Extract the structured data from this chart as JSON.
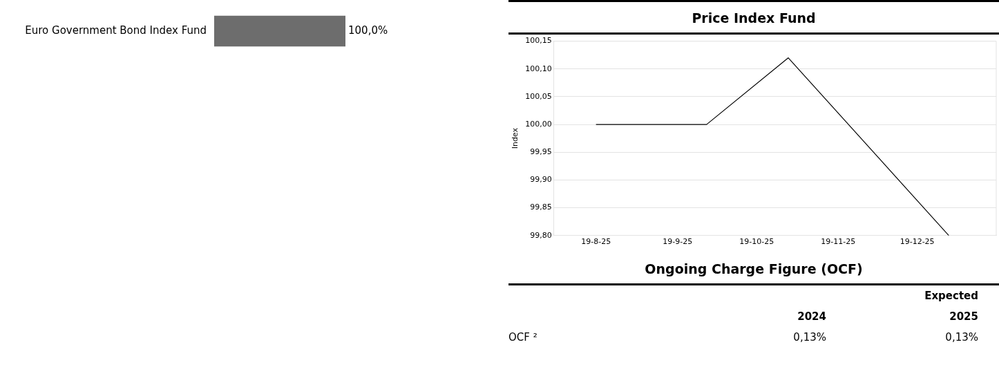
{
  "chart_data": [
    {
      "type": "bar",
      "orientation": "horizontal",
      "categories": [
        "Euro Government Bond Index Fund"
      ],
      "values": [
        100
      ],
      "value_labels": [
        "100,0%"
      ],
      "color": "#6d6d6d",
      "grid": false,
      "legend": false
    },
    {
      "type": "line",
      "title": "Price Index Fund",
      "ylabel": "Index",
      "x": [
        "2025-08-19",
        "2025-09-30",
        "2025-10-31",
        "2025-12-31"
      ],
      "series": [
        {
          "color": "#000000",
          "values": [
            100.0,
            100.0,
            100.12,
            99.8
          ]
        }
      ],
      "xlim": [
        "2025-08-03",
        "2026-01-18"
      ],
      "xticks": [
        {
          "value": "2025-08-19",
          "label": "19-8-25"
        },
        {
          "value": "2025-09-19",
          "label": "19-9-25"
        },
        {
          "value": "2025-10-19",
          "label": "19-10-25"
        },
        {
          "value": "2025-11-19",
          "label": "19-11-25"
        },
        {
          "value": "2025-12-19",
          "label": "19-12-25"
        }
      ],
      "ylim": [
        99.8,
        100.15
      ],
      "yticks": [
        {
          "value": 99.8,
          "label": "99,80"
        },
        {
          "value": 99.85,
          "label": "99,85"
        },
        {
          "value": 99.9,
          "label": "99,90"
        },
        {
          "value": 99.95,
          "label": "99,95"
        },
        {
          "value": 100,
          "label": "100,00"
        },
        {
          "value": 100.05,
          "label": "100,05"
        },
        {
          "value": 100.1,
          "label": "100,10"
        },
        {
          "value": 100.15,
          "label": "100,15"
        }
      ],
      "grid": "y",
      "legend": false,
      "marker": "none",
      "line_style": "solid"
    },
    {
      "type": "other",
      "title": "Ongoing Charge Figure (OCF)",
      "annotations": [
        "Expected",
        "2024",
        "2025",
        "OCF ²",
        "0,13%",
        "0,13%"
      ]
    }
  ]
}
